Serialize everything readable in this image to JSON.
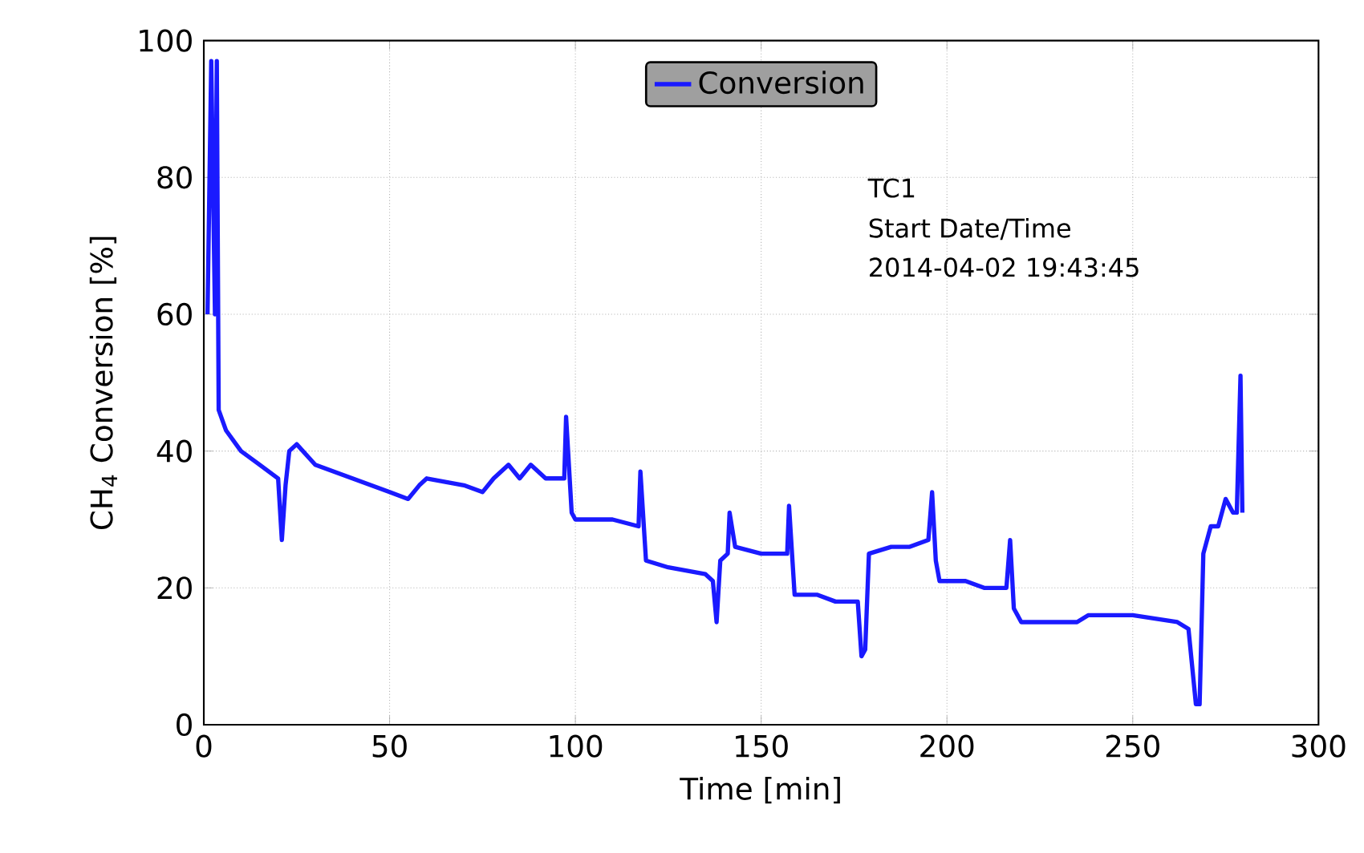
{
  "chart_data": {
    "type": "line",
    "xlabel": "Time [min]",
    "ylabel": "CH$_{4}$ Conversion [%]",
    "xlim": [
      0,
      300
    ],
    "ylim": [
      0,
      100
    ],
    "xticks": [
      0,
      50,
      100,
      150,
      200,
      250,
      300
    ],
    "yticks": [
      0,
      20,
      40,
      60,
      80,
      100
    ],
    "grid": true,
    "legend": "top",
    "line_style": "solid",
    "marker": "none",
    "annotations": [
      "TC1",
      "Start Date/Time",
      "2014-04-02 19:43:45"
    ],
    "series": [
      {
        "name": "Conversion",
        "color": "#1a1aff",
        "x": [
          1,
          2,
          3,
          3.5,
          4,
          6,
          10,
          15,
          20,
          21,
          22,
          23,
          25,
          30,
          40,
          50,
          55,
          58,
          60,
          70,
          75,
          78,
          82,
          85,
          88,
          92,
          97,
          97.5,
          99,
          100,
          110,
          117,
          117.5,
          119,
          125,
          135,
          137,
          138,
          139,
          141,
          141.5,
          143,
          150,
          157,
          157.5,
          159,
          165,
          170,
          176,
          177,
          178,
          179,
          185,
          190,
          195,
          196,
          197,
          198,
          205,
          210,
          216,
          217,
          218,
          220,
          230,
          235,
          238,
          250,
          262,
          265,
          267,
          268,
          269,
          271,
          273,
          275,
          277,
          278,
          279,
          279.5
        ],
        "values": [
          60,
          97,
          60,
          97,
          46,
          43,
          40,
          38,
          36,
          27,
          35,
          40,
          41,
          38,
          36,
          34,
          33,
          35,
          36,
          35,
          34,
          36,
          38,
          36,
          38,
          36,
          36,
          45,
          31,
          30,
          30,
          29,
          37,
          24,
          23,
          22,
          21,
          15,
          24,
          25,
          31,
          26,
          25,
          25,
          32,
          19,
          19,
          18,
          18,
          10,
          11,
          25,
          26,
          26,
          27,
          34,
          24,
          21,
          21,
          20,
          20,
          27,
          17,
          15,
          15,
          15,
          16,
          16,
          15,
          14,
          3,
          3,
          25,
          29,
          29,
          33,
          31,
          31,
          51,
          31
        ]
      }
    ]
  }
}
